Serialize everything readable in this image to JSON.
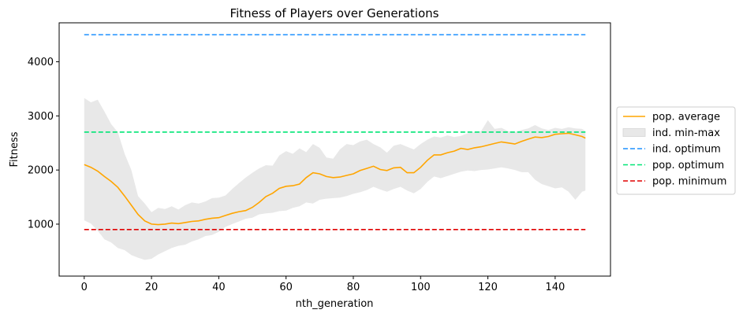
{
  "chart_data": {
    "type": "line",
    "title": "Fitness of Players over Generations",
    "xlabel": "nth_generation",
    "ylabel": "Fitness",
    "xlim": [
      -7.45,
      156.45
    ],
    "ylim": [
      40,
      4720
    ],
    "xticks": [
      0,
      20,
      40,
      60,
      80,
      100,
      120,
      140
    ],
    "yticks": [
      1000,
      2000,
      3000,
      4000
    ],
    "grid": false,
    "legend_position": "outside-right",
    "legend": [
      {
        "label": "pop. average",
        "kind": "line",
        "color": "#ffa500"
      },
      {
        "label": "ind. min-max",
        "kind": "fill",
        "color": "#e8e8e8"
      },
      {
        "label": "ind. optimum",
        "kind": "dashed",
        "color": "#1e90ff"
      },
      {
        "label": "pop. optimum",
        "kind": "dashed",
        "color": "#00e676"
      },
      {
        "label": "pop. minimum",
        "kind": "dashed",
        "color": "#e00000"
      }
    ],
    "hlines": [
      {
        "name": "ind. optimum",
        "y": 4500,
        "color": "#1e90ff"
      },
      {
        "name": "pop. optimum",
        "y": 2700,
        "color": "#00e676"
      },
      {
        "name": "pop. minimum",
        "y": 900,
        "color": "#e00000"
      }
    ],
    "x_range": [
      0,
      149
    ],
    "average": {
      "name": "pop. average",
      "color": "#ffa500",
      "points": [
        [
          0,
          2100
        ],
        [
          2,
          2050
        ],
        [
          4,
          1980
        ],
        [
          6,
          1880
        ],
        [
          8,
          1790
        ],
        [
          10,
          1680
        ],
        [
          12,
          1520
        ],
        [
          14,
          1350
        ],
        [
          16,
          1180
        ],
        [
          18,
          1060
        ],
        [
          20,
          1000
        ],
        [
          22,
          990
        ],
        [
          24,
          1000
        ],
        [
          26,
          1020
        ],
        [
          28,
          1010
        ],
        [
          30,
          1030
        ],
        [
          32,
          1050
        ],
        [
          34,
          1060
        ],
        [
          36,
          1090
        ],
        [
          38,
          1110
        ],
        [
          40,
          1120
        ],
        [
          42,
          1160
        ],
        [
          44,
          1200
        ],
        [
          46,
          1230
        ],
        [
          48,
          1250
        ],
        [
          50,
          1310
        ],
        [
          52,
          1400
        ],
        [
          54,
          1510
        ],
        [
          56,
          1570
        ],
        [
          58,
          1660
        ],
        [
          60,
          1700
        ],
        [
          62,
          1710
        ],
        [
          64,
          1740
        ],
        [
          66,
          1860
        ],
        [
          68,
          1950
        ],
        [
          70,
          1930
        ],
        [
          72,
          1880
        ],
        [
          74,
          1860
        ],
        [
          76,
          1870
        ],
        [
          78,
          1900
        ],
        [
          80,
          1930
        ],
        [
          82,
          1990
        ],
        [
          84,
          2030
        ],
        [
          86,
          2070
        ],
        [
          88,
          2010
        ],
        [
          90,
          1990
        ],
        [
          92,
          2040
        ],
        [
          94,
          2050
        ],
        [
          96,
          1950
        ],
        [
          98,
          1950
        ],
        [
          100,
          2050
        ],
        [
          102,
          2180
        ],
        [
          104,
          2280
        ],
        [
          106,
          2280
        ],
        [
          108,
          2320
        ],
        [
          110,
          2350
        ],
        [
          112,
          2400
        ],
        [
          114,
          2380
        ],
        [
          116,
          2410
        ],
        [
          118,
          2430
        ],
        [
          120,
          2460
        ],
        [
          122,
          2490
        ],
        [
          124,
          2520
        ],
        [
          126,
          2500
        ],
        [
          128,
          2480
        ],
        [
          130,
          2530
        ],
        [
          132,
          2570
        ],
        [
          134,
          2610
        ],
        [
          136,
          2600
        ],
        [
          138,
          2620
        ],
        [
          140,
          2660
        ],
        [
          142,
          2670
        ],
        [
          144,
          2680
        ],
        [
          146,
          2650
        ],
        [
          148,
          2620
        ],
        [
          149,
          2590
        ]
      ]
    },
    "band": {
      "name": "ind. min-max",
      "color": "#e8e8e8",
      "upper": [
        [
          0,
          3330
        ],
        [
          2,
          3250
        ],
        [
          4,
          3300
        ],
        [
          6,
          3080
        ],
        [
          8,
          2850
        ],
        [
          10,
          2700
        ],
        [
          12,
          2300
        ],
        [
          14,
          2000
        ],
        [
          16,
          1520
        ],
        [
          18,
          1380
        ],
        [
          20,
          1220
        ],
        [
          22,
          1300
        ],
        [
          24,
          1280
        ],
        [
          26,
          1330
        ],
        [
          28,
          1270
        ],
        [
          30,
          1350
        ],
        [
          32,
          1400
        ],
        [
          34,
          1380
        ],
        [
          36,
          1420
        ],
        [
          38,
          1480
        ],
        [
          40,
          1490
        ],
        [
          42,
          1530
        ],
        [
          44,
          1650
        ],
        [
          46,
          1760
        ],
        [
          48,
          1860
        ],
        [
          50,
          1950
        ],
        [
          52,
          2030
        ],
        [
          54,
          2090
        ],
        [
          56,
          2080
        ],
        [
          58,
          2270
        ],
        [
          60,
          2350
        ],
        [
          62,
          2300
        ],
        [
          64,
          2400
        ],
        [
          66,
          2330
        ],
        [
          68,
          2480
        ],
        [
          70,
          2410
        ],
        [
          72,
          2230
        ],
        [
          74,
          2210
        ],
        [
          76,
          2380
        ],
        [
          78,
          2480
        ],
        [
          80,
          2460
        ],
        [
          82,
          2530
        ],
        [
          84,
          2560
        ],
        [
          86,
          2480
        ],
        [
          88,
          2420
        ],
        [
          90,
          2320
        ],
        [
          92,
          2450
        ],
        [
          94,
          2480
        ],
        [
          96,
          2430
        ],
        [
          98,
          2380
        ],
        [
          100,
          2480
        ],
        [
          102,
          2560
        ],
        [
          104,
          2620
        ],
        [
          106,
          2600
        ],
        [
          108,
          2640
        ],
        [
          110,
          2610
        ],
        [
          112,
          2630
        ],
        [
          114,
          2680
        ],
        [
          116,
          2700
        ],
        [
          118,
          2720
        ],
        [
          120,
          2920
        ],
        [
          122,
          2760
        ],
        [
          124,
          2780
        ],
        [
          126,
          2720
        ],
        [
          128,
          2700
        ],
        [
          130,
          2740
        ],
        [
          132,
          2770
        ],
        [
          134,
          2830
        ],
        [
          136,
          2770
        ],
        [
          138,
          2740
        ],
        [
          140,
          2780
        ],
        [
          142,
          2760
        ],
        [
          144,
          2790
        ],
        [
          146,
          2770
        ],
        [
          148,
          2760
        ],
        [
          149,
          2720
        ]
      ],
      "lower": [
        [
          0,
          1070
        ],
        [
          2,
          1010
        ],
        [
          4,
          880
        ],
        [
          6,
          720
        ],
        [
          8,
          660
        ],
        [
          10,
          560
        ],
        [
          12,
          520
        ],
        [
          14,
          430
        ],
        [
          16,
          380
        ],
        [
          18,
          340
        ],
        [
          20,
          360
        ],
        [
          22,
          440
        ],
        [
          24,
          500
        ],
        [
          26,
          560
        ],
        [
          28,
          600
        ],
        [
          30,
          620
        ],
        [
          32,
          680
        ],
        [
          34,
          720
        ],
        [
          36,
          780
        ],
        [
          38,
          800
        ],
        [
          40,
          860
        ],
        [
          42,
          950
        ],
        [
          44,
          1000
        ],
        [
          46,
          1050
        ],
        [
          48,
          1100
        ],
        [
          50,
          1120
        ],
        [
          52,
          1180
        ],
        [
          54,
          1200
        ],
        [
          56,
          1210
        ],
        [
          58,
          1240
        ],
        [
          60,
          1250
        ],
        [
          62,
          1300
        ],
        [
          64,
          1330
        ],
        [
          66,
          1400
        ],
        [
          68,
          1380
        ],
        [
          70,
          1450
        ],
        [
          72,
          1470
        ],
        [
          74,
          1480
        ],
        [
          76,
          1490
        ],
        [
          78,
          1520
        ],
        [
          80,
          1560
        ],
        [
          82,
          1590
        ],
        [
          84,
          1630
        ],
        [
          86,
          1690
        ],
        [
          88,
          1640
        ],
        [
          90,
          1600
        ],
        [
          92,
          1650
        ],
        [
          94,
          1690
        ],
        [
          96,
          1620
        ],
        [
          98,
          1570
        ],
        [
          100,
          1650
        ],
        [
          102,
          1780
        ],
        [
          104,
          1880
        ],
        [
          106,
          1850
        ],
        [
          108,
          1890
        ],
        [
          110,
          1930
        ],
        [
          112,
          1970
        ],
        [
          114,
          1990
        ],
        [
          116,
          1980
        ],
        [
          118,
          2000
        ],
        [
          120,
          2010
        ],
        [
          122,
          2030
        ],
        [
          124,
          2050
        ],
        [
          126,
          2030
        ],
        [
          128,
          2000
        ],
        [
          130,
          1960
        ],
        [
          132,
          1960
        ],
        [
          134,
          1820
        ],
        [
          136,
          1740
        ],
        [
          138,
          1700
        ],
        [
          140,
          1660
        ],
        [
          142,
          1680
        ],
        [
          144,
          1600
        ],
        [
          146,
          1450
        ],
        [
          148,
          1600
        ],
        [
          149,
          1620
        ]
      ]
    }
  }
}
